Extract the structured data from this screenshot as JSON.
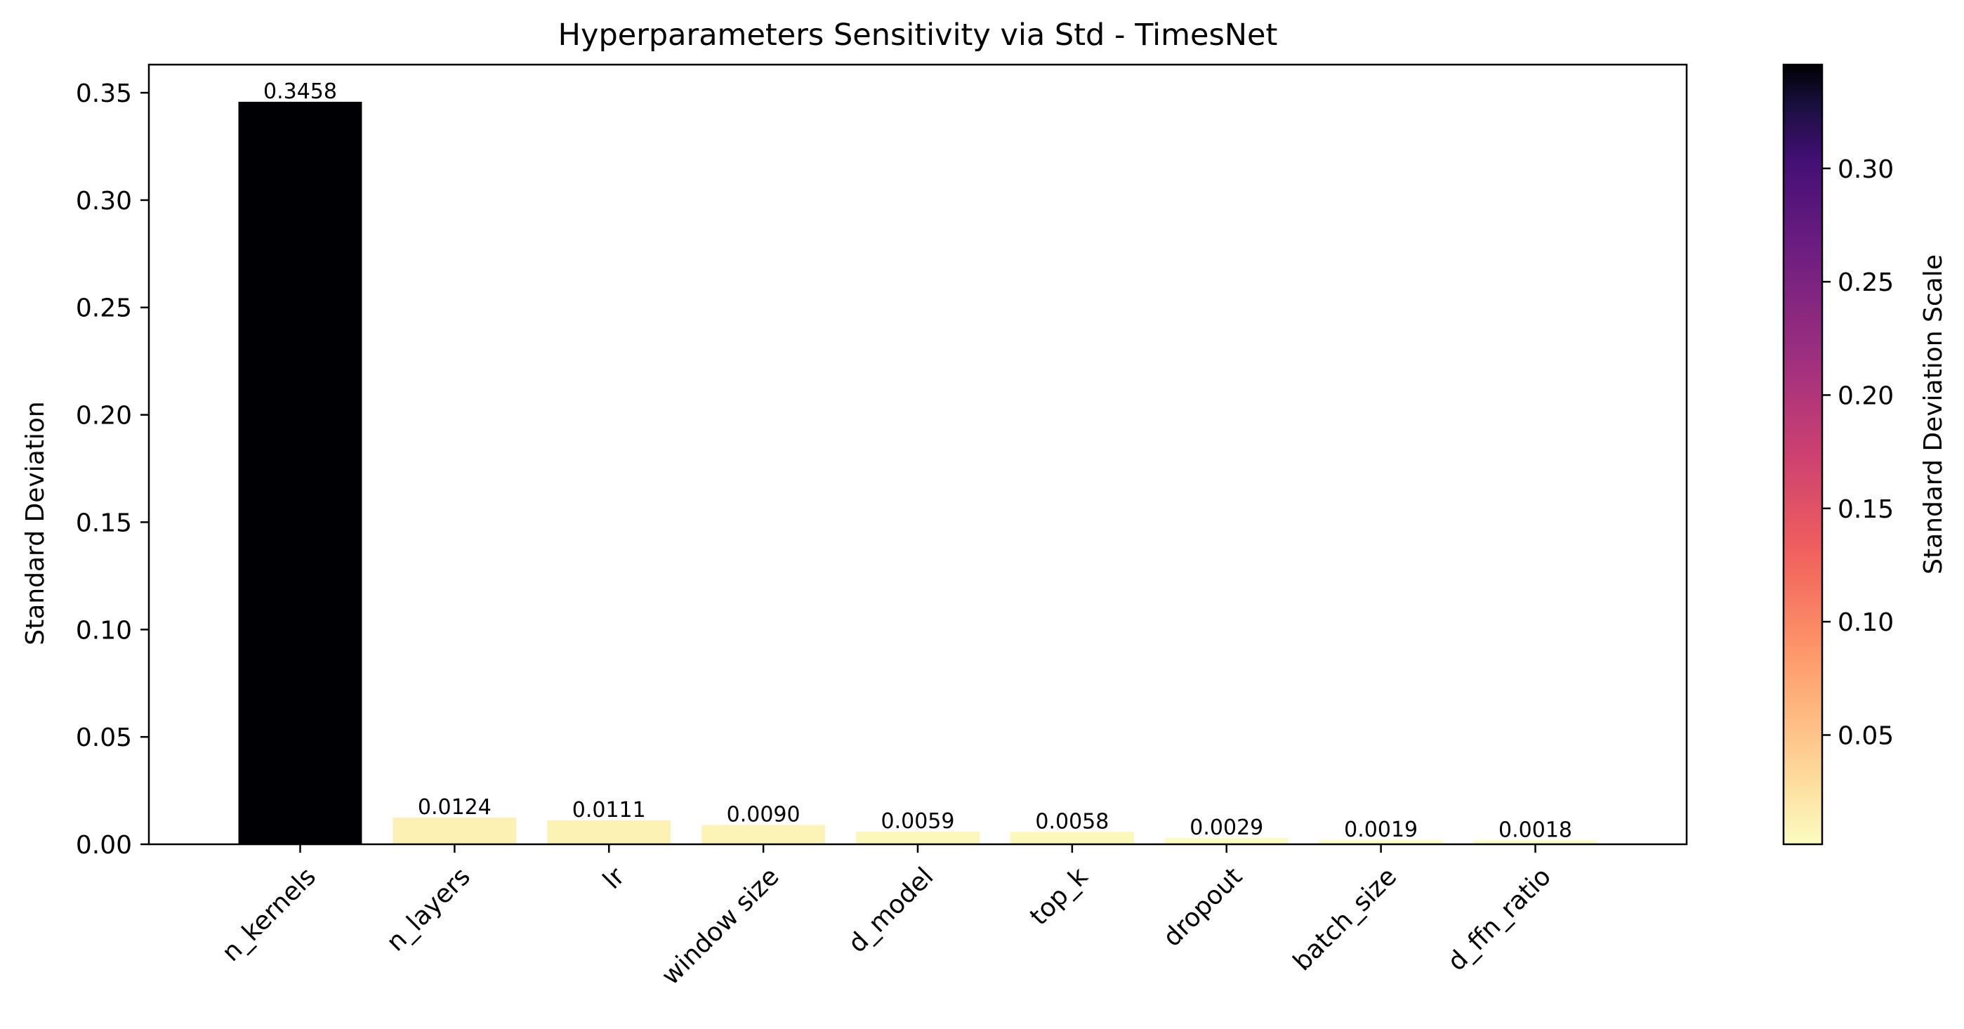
{
  "chart_data": {
    "type": "bar",
    "title": "Hyperparameters Sensitivity via Std - TimesNet",
    "xlabel": "",
    "ylabel": "Standard Deviation",
    "categories": [
      "n_kernels",
      "n_layers",
      "lr",
      "window size",
      "d_model",
      "top_k",
      "dropout",
      "batch_size",
      "d_ffn_ratio"
    ],
    "values": [
      0.3458,
      0.0124,
      0.0111,
      0.009,
      0.0059,
      0.0058,
      0.0029,
      0.0019,
      0.0018
    ],
    "value_labels": [
      "0.3458",
      "0.0124",
      "0.0111",
      "0.0090",
      "0.0059",
      "0.0058",
      "0.0029",
      "0.0019",
      "0.0018"
    ],
    "ylim": [
      0,
      0.3631
    ],
    "yticks": [
      0.0,
      0.05,
      0.1,
      0.15,
      0.2,
      0.25,
      0.3,
      0.35
    ],
    "ytick_labels": [
      "0.00",
      "0.05",
      "0.10",
      "0.15",
      "0.20",
      "0.25",
      "0.30",
      "0.35"
    ],
    "grid": false,
    "legend": "none",
    "colormap": "magma_r",
    "colorbar": {
      "label": "Standard Deviation Scale",
      "range": [
        0.0018,
        0.3458
      ],
      "ticks": [
        0.05,
        0.1,
        0.15,
        0.2,
        0.25,
        0.3
      ],
      "tick_labels": [
        "0.05",
        "0.10",
        "0.15",
        "0.20",
        "0.25",
        "0.30"
      ]
    }
  }
}
